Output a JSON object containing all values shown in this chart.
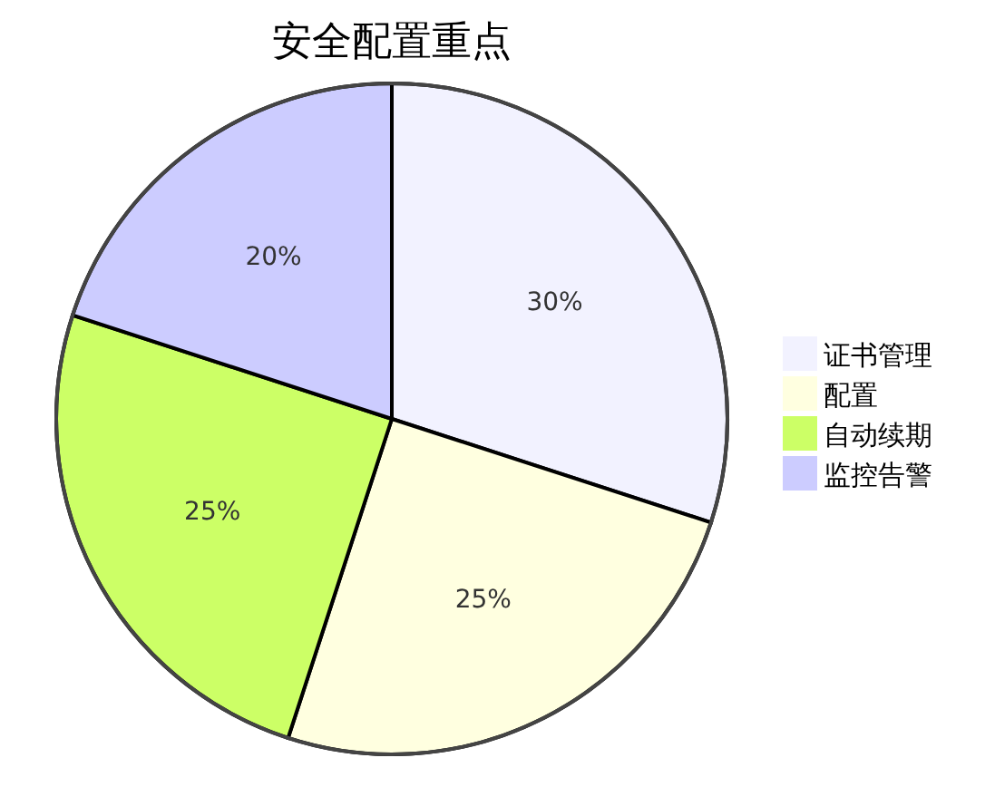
{
  "chart_data": {
    "type": "pie",
    "title": "安全配置重点",
    "categories": [
      "证书管理",
      "配置",
      "自动续期",
      "监控告警"
    ],
    "values": [
      30,
      25,
      25,
      20
    ],
    "colors": [
      "#f2f2ff",
      "#ffffe0",
      "#ccff66",
      "#ccccff"
    ],
    "value_labels": [
      "30%",
      "25%",
      "25%",
      "20%"
    ],
    "legend": "right"
  }
}
